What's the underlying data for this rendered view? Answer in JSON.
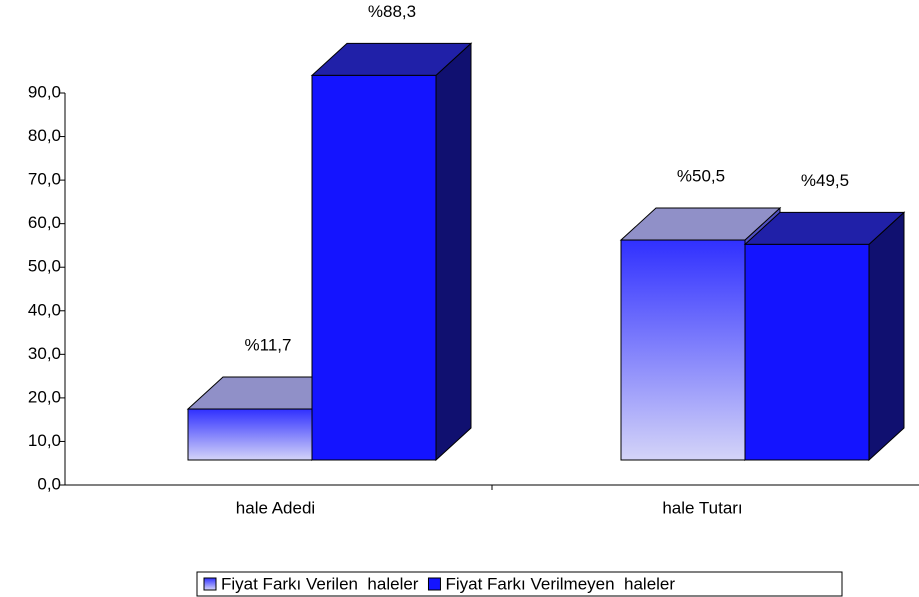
{
  "chart_data": {
    "type": "bar3d",
    "categories": [
      "hale Adedi",
      "hale Tutarı"
    ],
    "series": [
      {
        "name": "Fiyat Farkı Verilen  haleler",
        "color": "#d4d4f8",
        "values": [
          11.7,
          50.5
        ],
        "value_labels": [
          "%11,7",
          "%50,5"
        ]
      },
      {
        "name": "Fiyat Farkı Verilmeyen  haleler",
        "color": "#1414ff",
        "values": [
          88.3,
          49.5
        ],
        "value_labels": [
          "%88,3",
          "%49,5"
        ]
      }
    ],
    "ylim": [
      0,
      90
    ],
    "yticks": [
      {
        "value": 0,
        "label": "0,0"
      },
      {
        "value": 10,
        "label": "10,0"
      },
      {
        "value": 20,
        "label": "20,0"
      },
      {
        "value": 30,
        "label": "30,0"
      },
      {
        "value": 40,
        "label": "40,0"
      },
      {
        "value": 50,
        "label": "50,0"
      },
      {
        "value": 60,
        "label": "60,0"
      },
      {
        "value": 70,
        "label": "70,0"
      },
      {
        "value": 80,
        "label": "80,0"
      },
      {
        "value": 90,
        "label": "90,0"
      }
    ],
    "legend": "bottom"
  }
}
